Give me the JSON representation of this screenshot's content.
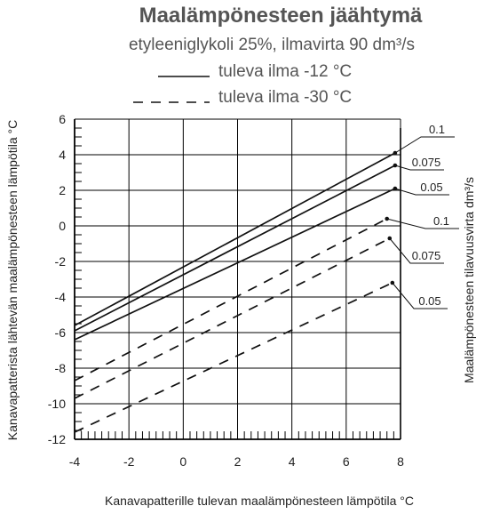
{
  "chart_data": {
    "type": "line",
    "title": "Maalämpönesteen jäähtymä",
    "subtitle": "etyleeniglykoli 25%, ilmavirta 90 dm³/s",
    "xlabel": "Kanavapatterille tulevan maalämpönesteen lämpötila °C",
    "ylabel": "Kanavapatterista lähtevän maalämpönesteen lämpötila °C",
    "y2label": "Maalämpönesteen tilavuusvirta dm³/s",
    "xlim": [
      -4,
      8
    ],
    "ylim": [
      -12,
      6
    ],
    "xticks": [
      "-4",
      "-2",
      "0",
      "2",
      "4",
      "6",
      "8"
    ],
    "yticks": [
      "-12",
      "-10",
      "-8",
      "-6",
      "-4",
      "-2",
      "0",
      "2",
      "4",
      "6"
    ],
    "legend": [
      {
        "label": "tuleva ilma -12 °C",
        "style": "solid"
      },
      {
        "label": "tuleva ilma -30 °C",
        "style": "dashed"
      }
    ],
    "series": [
      {
        "group": "tuleva ilma -12 °C",
        "flow": "0.1",
        "style": "solid",
        "x": [
          -4,
          7.8
        ],
        "y": [
          -5.6,
          4.1
        ]
      },
      {
        "group": "tuleva ilma -12 °C",
        "flow": "0.075",
        "style": "solid",
        "x": [
          -4,
          7.8
        ],
        "y": [
          -5.9,
          3.4
        ]
      },
      {
        "group": "tuleva ilma -12 °C",
        "flow": "0.05",
        "style": "solid",
        "x": [
          -4,
          7.8
        ],
        "y": [
          -6.4,
          2.1
        ]
      },
      {
        "group": "tuleva ilma -30 °C",
        "flow": "0.1",
        "style": "dashed",
        "x": [
          -4,
          7.5
        ],
        "y": [
          -8.7,
          0.4
        ]
      },
      {
        "group": "tuleva ilma -30 °C",
        "flow": "0.075",
        "style": "dashed",
        "x": [
          -4,
          7.6
        ],
        "y": [
          -9.7,
          -0.7
        ]
      },
      {
        "group": "tuleva ilma -30 °C",
        "flow": "0.05",
        "style": "dashed",
        "x": [
          -4,
          7.7
        ],
        "y": [
          -11.6,
          -3.2
        ]
      }
    ]
  }
}
